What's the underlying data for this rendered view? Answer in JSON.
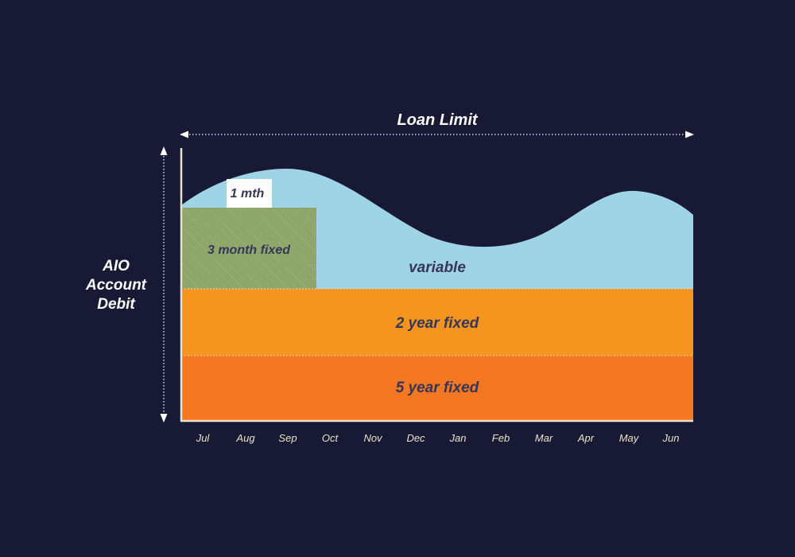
{
  "loan_limit_label": "Loan Limit",
  "y_axis_label": [
    "AIO",
    "Account",
    "Debit"
  ],
  "bands": {
    "one_month": "1 mth",
    "three_month": "3 month fixed",
    "variable": "variable",
    "two_year": "2 year fixed",
    "five_year": "5 year fixed"
  },
  "months": [
    "Jul",
    "Aug",
    "Sep",
    "Oct",
    "Nov",
    "Dec",
    "Jan",
    "Feb",
    "Mar",
    "Apr",
    "May",
    "Jun"
  ],
  "colors": {
    "background": "#181a35",
    "variable": "#9fd3e6",
    "two_year": "#f5951f",
    "five_year": "#f47721",
    "three_month": "#8fa66b",
    "one_month": "#ffffff",
    "band_text": "#36365a",
    "axis_line": "#e9e2c9",
    "month_text": "#e9e2c9",
    "label_white": "#ffffff"
  }
}
